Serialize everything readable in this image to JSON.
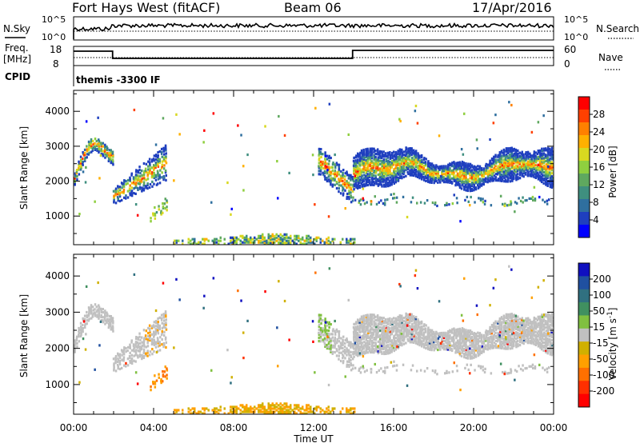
{
  "header": {
    "title": "Fort Hays West (fitACF)",
    "beam": "Beam 06",
    "date": "17/Apr/2016"
  },
  "summary_panels": {
    "nsky_label": "N.Sky",
    "nsearch_label": "N.Search",
    "nsky_ticks": [
      "10^5",
      "10^0"
    ],
    "nsearch_ticks": [
      "10^5",
      "10^0"
    ],
    "freq_label_1": "Freq.",
    "freq_label_2": "[MHz]",
    "freq_ticks": [
      "18",
      "8"
    ],
    "nave_label": "Nave",
    "nave_ticks": [
      "60",
      "0"
    ],
    "cpid_label": "CPID",
    "cpid_text": "themis -3300 IF"
  },
  "colors": {
    "power": [
      "#0000ff",
      "#1f3fbf",
      "#2f6f9f",
      "#3f8f7f",
      "#5fa85f",
      "#8fcf3f",
      "#d8d820",
      "#ffb000",
      "#ff8000",
      "#ff4000",
      "#ff0000"
    ],
    "velocity": [
      "#1010c0",
      "#2050a0",
      "#307080",
      "#409060",
      "#80c040",
      "#c0c0c0",
      "#d0b000",
      "#ffa000",
      "#ff7000",
      "#ff3000",
      "#ff0000"
    ]
  },
  "chart_data": [
    {
      "type": "heatmap",
      "name": "power",
      "ylabel": "Slant Range [km]",
      "yticks": [
        1000,
        2000,
        3000,
        4000
      ],
      "ylim": [
        180,
        4600
      ],
      "xlim": [
        0,
        24
      ],
      "colorbar_label": "Power [dB]",
      "colorbar_ticks": [
        4,
        8,
        12,
        16,
        20,
        24,
        28
      ],
      "colorbar_range": [
        0,
        32
      ]
    },
    {
      "type": "heatmap",
      "name": "velocity",
      "ylabel": "Slant Range [km]",
      "yticks": [
        1000,
        2000,
        3000,
        4000
      ],
      "ylim": [
        180,
        4600
      ],
      "xlim": [
        0,
        24
      ],
      "colorbar_label": "Velocity [m s^-1]",
      "colorbar_ticks": [
        "200",
        "100",
        "50",
        "15",
        "-15",
        "-50",
        "-100",
        "-200"
      ],
      "xlabel": "Time UT",
      "xticks": [
        "00:00",
        "04:00",
        "08:00",
        "12:00",
        "16:00",
        "20:00",
        "00:00"
      ]
    }
  ]
}
